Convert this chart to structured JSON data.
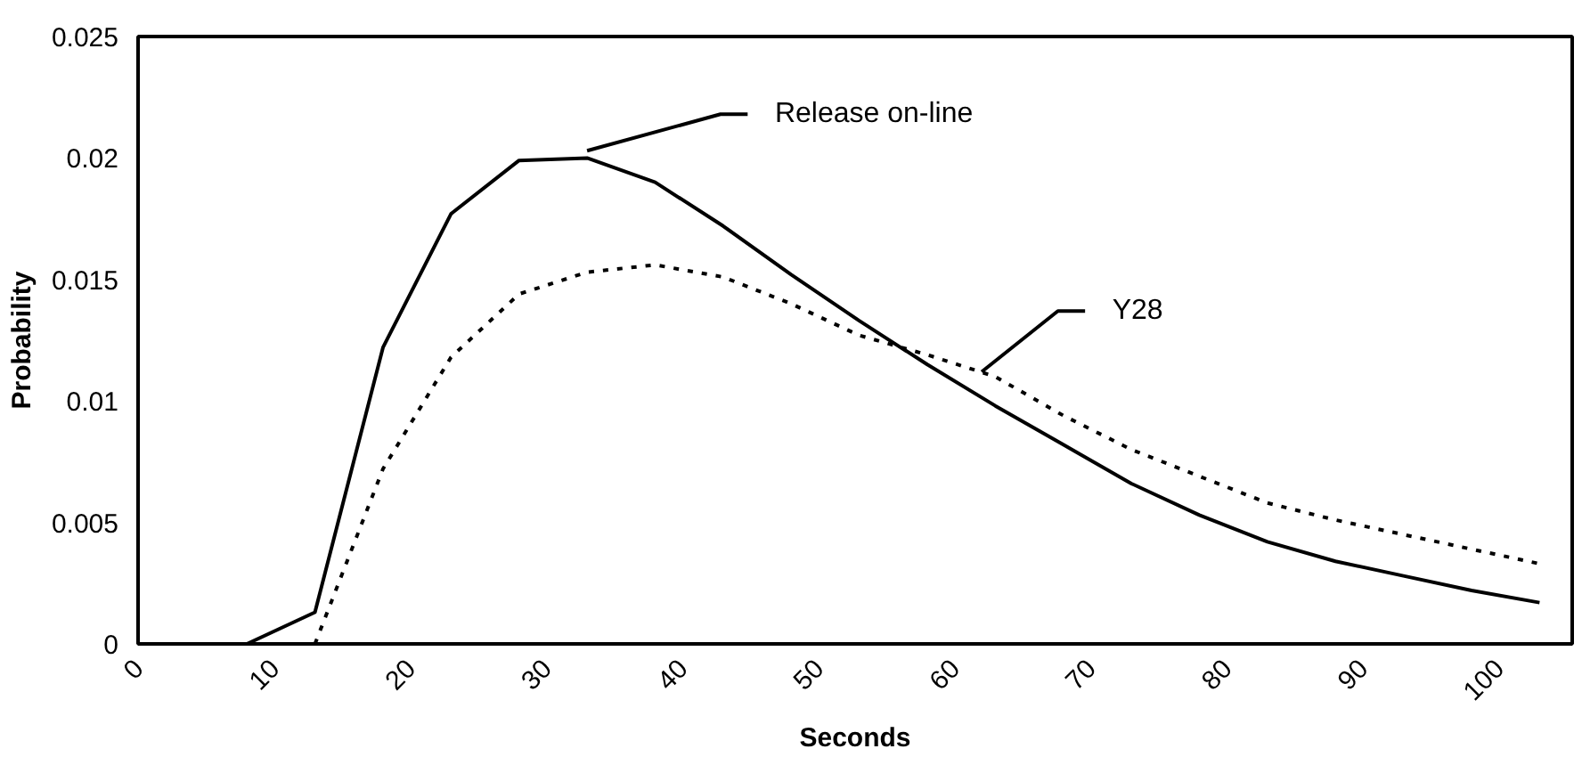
{
  "chart_data": {
    "type": "line",
    "xlabel": "Seconds",
    "ylabel": "Probability",
    "series": [
      {
        "color": "#000000",
        "line_style": "solid",
        "x": [
          0,
          3,
          8,
          13,
          18,
          23,
          28,
          33,
          38,
          43,
          48,
          53,
          58,
          63,
          68,
          73,
          78,
          83,
          88,
          93,
          98,
          103
        ],
        "values": [
          0,
          0,
          0,
          0.0013,
          0.0122,
          0.0177,
          0.0199,
          0.02,
          0.019,
          0.0172,
          0.0152,
          0.0133,
          0.0115,
          0.0098,
          0.0082,
          0.0066,
          0.0053,
          0.0042,
          0.0034,
          0.0028,
          0.0022,
          0.0017
        ]
      },
      {
        "color": "#000000",
        "line_style": "dotted",
        "x": [
          13,
          18,
          23,
          28,
          33,
          38,
          43,
          48,
          53,
          58,
          63,
          68,
          73,
          78,
          83,
          88,
          93,
          98,
          103
        ],
        "values": [
          0,
          0.0072,
          0.0118,
          0.0144,
          0.0153,
          0.0156,
          0.0151,
          0.014,
          0.0127,
          0.0119,
          0.011,
          0.0094,
          0.008,
          0.0069,
          0.0058,
          0.0051,
          0.0045,
          0.0039,
          0.0033
        ]
      }
    ],
    "annotations": [
      {
        "text": "Release on-line",
        "x": 33,
        "y": 0.0203
      },
      {
        "text": "Y28",
        "x": 62,
        "y": 0.0112
      }
    ],
    "xlim": [
      0,
      105.4
    ],
    "ylim": [
      0,
      0.025
    ],
    "xticks": [
      0,
      10,
      20,
      30,
      40,
      50,
      60,
      70,
      80,
      90,
      100
    ],
    "yticks": [
      0,
      0.005,
      0.01,
      0.015,
      0.02,
      0.025
    ],
    "grid": false,
    "marker": "none"
  }
}
